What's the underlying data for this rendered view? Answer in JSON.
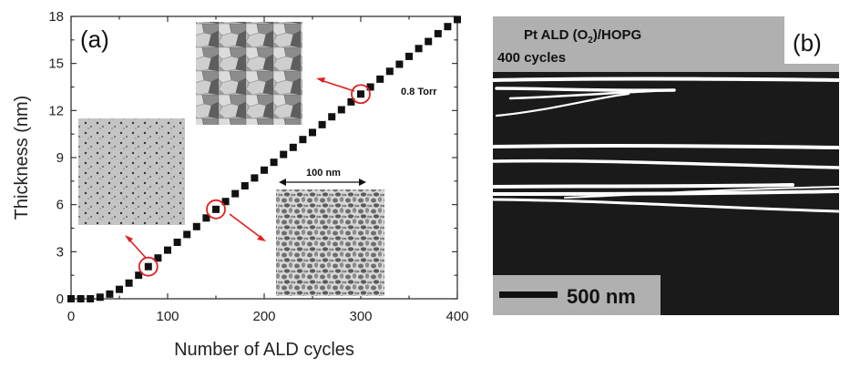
{
  "chart_data": {
    "type": "scatter",
    "panel_label": "(a)",
    "xlabel": "Number of ALD cycles",
    "ylabel": "Thickness (nm)",
    "xlim": [
      0,
      400
    ],
    "ylim": [
      0,
      18
    ],
    "xticks": [
      0,
      100,
      200,
      300,
      400
    ],
    "yticks": [
      0,
      3,
      6,
      9,
      12,
      15,
      18
    ],
    "marker": "square",
    "marker_color": "#111111",
    "x": [
      0,
      10,
      20,
      30,
      40,
      50,
      60,
      70,
      80,
      90,
      100,
      110,
      120,
      130,
      140,
      150,
      160,
      170,
      180,
      190,
      200,
      210,
      220,
      230,
      240,
      250,
      260,
      270,
      280,
      290,
      300,
      310,
      320,
      330,
      340,
      350,
      360,
      370,
      380,
      390,
      400
    ],
    "values": [
      0.0,
      0.0,
      0.0,
      0.1,
      0.3,
      0.6,
      1.0,
      1.5,
      2.05,
      2.6,
      3.1,
      3.6,
      4.1,
      4.6,
      5.15,
      5.7,
      6.2,
      6.7,
      7.2,
      7.7,
      8.2,
      8.7,
      9.2,
      9.65,
      10.15,
      10.6,
      11.1,
      11.6,
      12.05,
      12.55,
      13.05,
      13.5,
      14.0,
      14.5,
      14.95,
      15.45,
      15.95,
      16.4,
      16.9,
      17.35,
      17.8
    ],
    "highlighted_points": [
      {
        "x": 80,
        "y": 2.05
      },
      {
        "x": 150,
        "y": 5.7
      },
      {
        "x": 300,
        "y": 13.05
      }
    ],
    "highlight_color": "#e02020",
    "annotations": {
      "pressure": "0.8 Torr",
      "scale_bar": "100 nm"
    }
  },
  "sem_panel": {
    "panel_label": "(b)",
    "title_line1": "Pt ALD (O",
    "title_sub": "2",
    "title_line1_end": ")/HOPG",
    "title_line2": "400 cycles",
    "scale_bar_label": "500 nm",
    "background_color": "#1a1a1a",
    "label_box_color": "#b0b0b0",
    "feature_color": "#ffffff"
  }
}
